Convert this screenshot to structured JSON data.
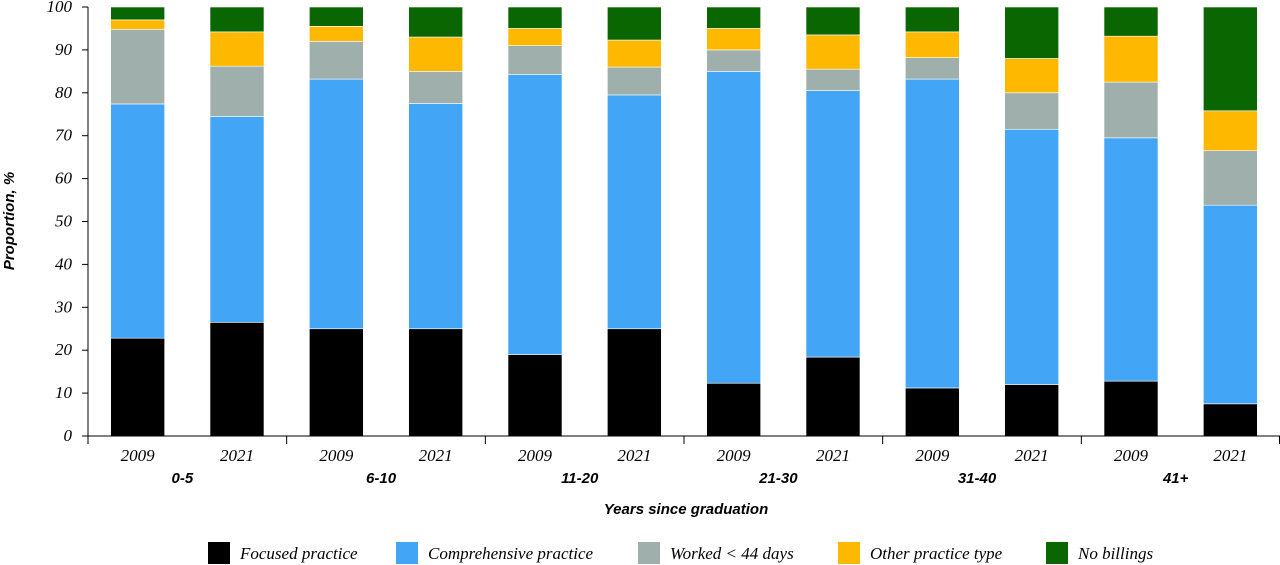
{
  "chart_data": {
    "type": "bar",
    "stacked": true,
    "title": "",
    "xlabel": "Years since graduation",
    "ylabel": "Proportion, %",
    "ylim": [
      0,
      100
    ],
    "yticks": [
      0,
      10,
      20,
      30,
      40,
      50,
      60,
      70,
      80,
      90,
      100
    ],
    "grid": false,
    "legend_position": "bottom",
    "groups": [
      "0-5",
      "6-10",
      "11-20",
      "21-30",
      "31-40",
      "41+"
    ],
    "categories": [
      "2009",
      "2021",
      "2009",
      "2021",
      "2009",
      "2021",
      "2009",
      "2021",
      "2009",
      "2021",
      "2009",
      "2021"
    ],
    "series": [
      {
        "name": "Focused practice",
        "color": "#000000",
        "values": [
          22.8,
          26.5,
          25.0,
          25.0,
          19.0,
          25.0,
          12.3,
          18.4,
          11.2,
          12.0,
          12.8,
          7.5
        ]
      },
      {
        "name": "Comprehensive practice",
        "color": "#42a5f5",
        "values": [
          54.6,
          48.0,
          58.2,
          52.5,
          65.3,
          54.5,
          72.7,
          62.1,
          72.0,
          59.5,
          56.7,
          46.3
        ]
      },
      {
        "name": "Worked < 44 days",
        "color": "#9fb0ac",
        "values": [
          17.4,
          11.7,
          8.8,
          7.5,
          6.7,
          6.5,
          5.0,
          5.0,
          5.0,
          8.5,
          13.0,
          12.7
        ]
      },
      {
        "name": "Other practice type",
        "color": "#ffb800",
        "values": [
          2.2,
          8.0,
          3.5,
          8.0,
          4.0,
          6.3,
          5.0,
          8.0,
          6.0,
          8.0,
          10.7,
          9.3
        ]
      },
      {
        "name": "No billings",
        "color": "#0a6600",
        "values": [
          3.0,
          5.8,
          4.5,
          7.0,
          5.0,
          7.7,
          5.0,
          6.5,
          5.8,
          12.0,
          6.8,
          24.2
        ]
      }
    ]
  }
}
